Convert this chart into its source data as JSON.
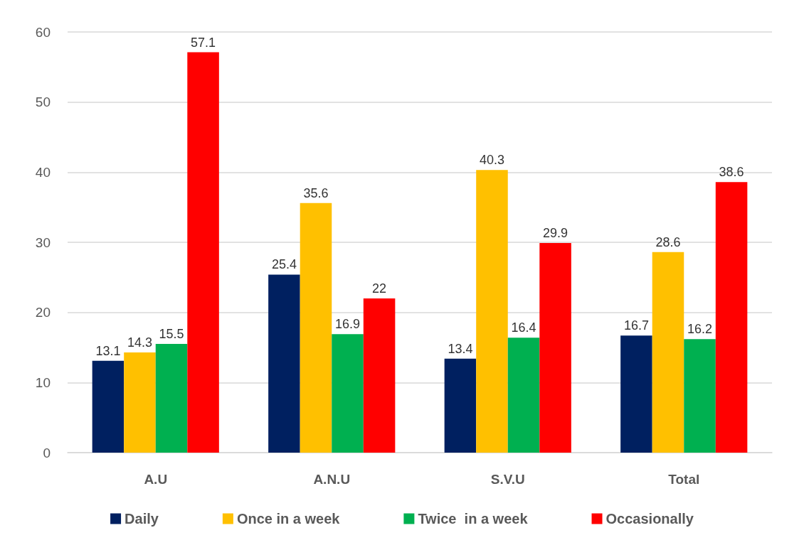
{
  "chart_data": {
    "type": "bar",
    "categories": [
      "A.U",
      "A.N.U",
      "S.V.U",
      "Total"
    ],
    "series": [
      {
        "name": "Daily",
        "color": "#002060",
        "values": [
          13.1,
          25.4,
          13.4,
          16.7
        ]
      },
      {
        "name": "Once in a week",
        "color": "#ffc000",
        "values": [
          14.3,
          35.6,
          40.3,
          28.6
        ]
      },
      {
        "name": "Twice  in a week",
        "color": "#00b050",
        "values": [
          15.5,
          16.9,
          16.4,
          16.2
        ]
      },
      {
        "name": "Occasionally",
        "color": "#ff0000",
        "values": [
          57.1,
          22,
          29.9,
          38.6
        ]
      }
    ],
    "ylim": [
      0,
      60
    ],
    "yticks": [
      0,
      10,
      20,
      30,
      40,
      50,
      60
    ],
    "grid": "y",
    "legend": "bottom",
    "data_labels": true
  }
}
